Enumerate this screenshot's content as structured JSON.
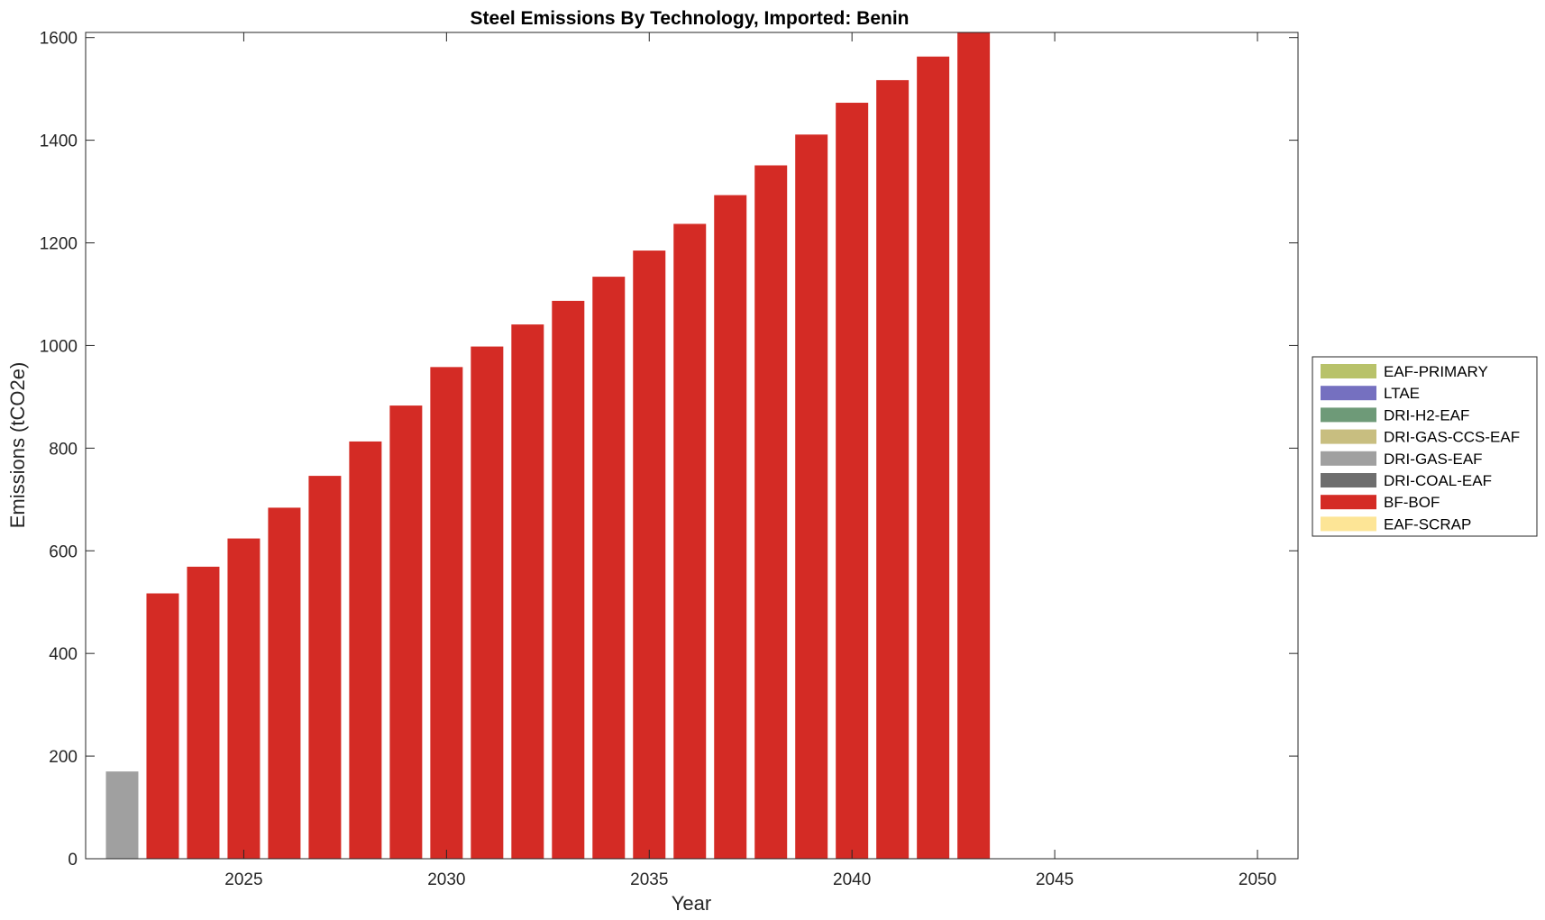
{
  "chart_data": {
    "type": "bar",
    "stacked": true,
    "title": "Steel Emissions By Technology, Imported: Benin",
    "xlabel": "Year",
    "ylabel": "Emissions (tCO2e)",
    "xlim": [
      2021.1,
      2051.0
    ],
    "ylim": [
      0,
      1610
    ],
    "xticks": [
      2025,
      2030,
      2035,
      2040,
      2045,
      2050
    ],
    "yticks": [
      0,
      200,
      400,
      600,
      800,
      1000,
      1200,
      1400,
      1600
    ],
    "grid": false,
    "legend_position": "right",
    "x": [
      2022,
      2023,
      2024,
      2025,
      2026,
      2027,
      2028,
      2029,
      2030,
      2031,
      2032,
      2033,
      2034,
      2035,
      2036,
      2037,
      2038,
      2039,
      2040,
      2041,
      2042,
      2043,
      2044,
      2045,
      2046,
      2047,
      2048,
      2049,
      2050
    ],
    "series": [
      {
        "name": "EAF-PRIMARY",
        "color": "#b8c26a",
        "values": [
          0,
          0,
          0,
          0,
          0,
          0,
          0,
          0,
          0,
          0,
          0,
          0,
          0,
          0,
          0,
          0,
          0,
          0,
          0,
          0,
          0,
          0,
          0,
          0,
          0,
          0,
          0,
          0,
          0
        ]
      },
      {
        "name": "LTAE",
        "color": "#7570c0",
        "values": [
          0,
          0,
          0,
          0,
          0,
          0,
          0,
          0,
          0,
          0,
          0,
          0,
          0,
          0,
          0,
          0,
          0,
          0,
          0,
          0,
          0,
          0,
          0,
          0,
          0,
          0,
          0,
          0,
          0
        ]
      },
      {
        "name": "DRI-H2-EAF",
        "color": "#6e9a78",
        "values": [
          0,
          0,
          0,
          0,
          0,
          0,
          0,
          0,
          0,
          0,
          0,
          0,
          0,
          0,
          0,
          0,
          0,
          0,
          0,
          0,
          0,
          0,
          0,
          0,
          0,
          0,
          0,
          0,
          0
        ]
      },
      {
        "name": "DRI-GAS-CCS-EAF",
        "color": "#c8be80",
        "values": [
          0,
          0,
          0,
          0,
          0,
          0,
          0,
          0,
          0,
          0,
          0,
          0,
          0,
          0,
          0,
          0,
          0,
          0,
          0,
          0,
          0,
          0,
          0,
          0,
          0,
          0,
          0,
          0,
          0
        ]
      },
      {
        "name": "DRI-GAS-EAF",
        "color": "#a0a0a0",
        "values": [
          170,
          0,
          0,
          0,
          0,
          0,
          0,
          0,
          0,
          0,
          0,
          0,
          0,
          0,
          0,
          0,
          0,
          0,
          0,
          0,
          0,
          0,
          0,
          0,
          0,
          0,
          0,
          0,
          0
        ]
      },
      {
        "name": "DRI-COAL-EAF",
        "color": "#6e6e6e",
        "values": [
          0,
          0,
          0,
          0,
          0,
          0,
          0,
          0,
          0,
          0,
          0,
          0,
          0,
          0,
          0,
          0,
          0,
          0,
          0,
          0,
          0,
          0,
          0,
          0,
          0,
          0,
          0,
          0,
          0
        ]
      },
      {
        "name": "BF-BOF",
        "color": "#d42b25",
        "values": [
          0,
          517,
          569,
          624,
          684,
          746,
          813,
          883,
          958,
          998,
          1041,
          1087,
          1134,
          1185,
          1237,
          1293,
          1351,
          1411,
          1473,
          1517,
          1563,
          1610,
          0,
          0,
          0,
          0,
          0,
          0,
          0
        ]
      },
      {
        "name": "EAF-SCRAP",
        "color": "#fde596",
        "values": [
          0,
          0,
          0,
          0,
          0,
          0,
          0,
          0,
          0,
          0,
          0,
          0,
          0,
          0,
          0,
          0,
          0,
          0,
          0,
          0,
          0,
          0,
          0,
          0,
          0,
          0,
          0,
          0,
          0
        ]
      }
    ]
  }
}
